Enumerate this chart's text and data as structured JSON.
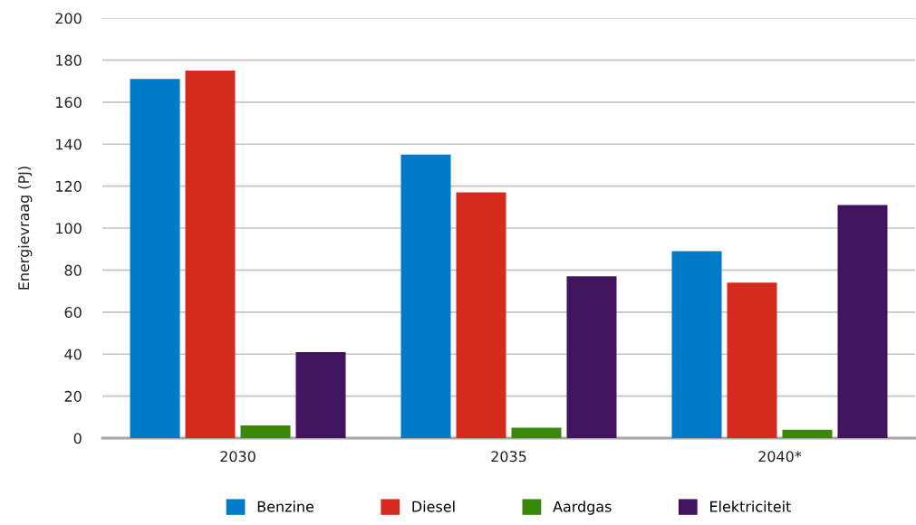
{
  "chart_data": {
    "type": "bar",
    "ylabel": "Energievraag (PJ)",
    "categories": [
      "2030",
      "2035",
      "2040*"
    ],
    "series": [
      {
        "name": "Benzine",
        "color": "#007bc7",
        "values": [
          171,
          135,
          89
        ]
      },
      {
        "name": "Diesel",
        "color": "#d52b1e",
        "values": [
          175,
          117,
          74
        ]
      },
      {
        "name": "Aardgas",
        "color": "#39870c",
        "values": [
          6,
          5,
          4
        ]
      },
      {
        "name": "Elektriciteit",
        "color": "#42145f",
        "values": [
          41,
          77,
          111
        ]
      }
    ],
    "ylim": [
      0,
      200
    ],
    "yticks": [
      0,
      20,
      40,
      60,
      80,
      100,
      120,
      140,
      160,
      180,
      200
    ],
    "grid": "y",
    "legend": "bottom"
  }
}
